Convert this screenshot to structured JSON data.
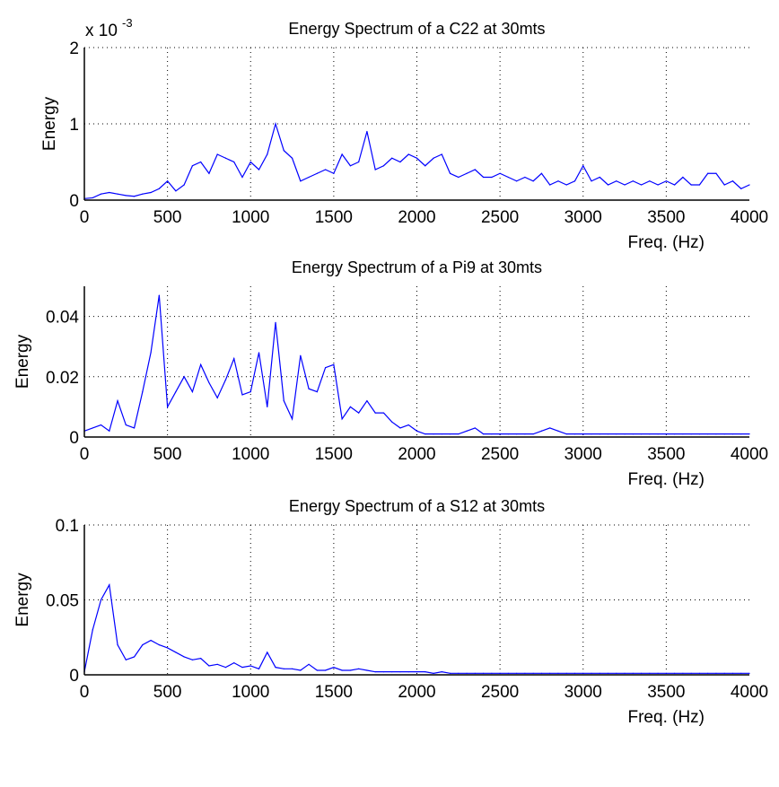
{
  "chart_data": [
    {
      "type": "line",
      "title": "Energy Spectrum of a C22 at 30mts",
      "xlabel": "Freq. (Hz)",
      "ylabel": "Energy",
      "y_exponent_label": "x 10",
      "y_exponent": "-3",
      "xlim": [
        0,
        4000
      ],
      "ylim": [
        0,
        2
      ],
      "xticks": [
        "0",
        "500",
        "1000",
        "1500",
        "2000",
        "2500",
        "3000",
        "3500",
        "4000"
      ],
      "yticks": [
        "0",
        "1",
        "2"
      ],
      "grid": true,
      "color": "#0000ff",
      "x_step": 50,
      "values": [
        0.02,
        0.03,
        0.08,
        0.1,
        0.08,
        0.06,
        0.05,
        0.08,
        0.1,
        0.15,
        0.25,
        0.12,
        0.2,
        0.45,
        0.5,
        0.35,
        0.6,
        0.55,
        0.5,
        0.3,
        0.5,
        0.4,
        0.6,
        1.0,
        0.65,
        0.55,
        0.25,
        0.3,
        0.35,
        0.4,
        0.35,
        0.6,
        0.45,
        0.5,
        0.9,
        0.4,
        0.45,
        0.55,
        0.5,
        0.6,
        0.55,
        0.45,
        0.55,
        0.6,
        0.35,
        0.3,
        0.35,
        0.4,
        0.3,
        0.3,
        0.35,
        0.3,
        0.25,
        0.3,
        0.25,
        0.35,
        0.2,
        0.25,
        0.2,
        0.25,
        0.45,
        0.25,
        0.3,
        0.2,
        0.25,
        0.2,
        0.25,
        0.2,
        0.25,
        0.2,
        0.25,
        0.2,
        0.3,
        0.2,
        0.2,
        0.35,
        0.35,
        0.2,
        0.25,
        0.15,
        0.2
      ]
    },
    {
      "type": "line",
      "title": "Energy Spectrum of a Pi9 at 30mts",
      "xlabel": "Freq. (Hz)",
      "ylabel": "Energy",
      "xlim": [
        0,
        4000
      ],
      "ylim": [
        0,
        0.05
      ],
      "xticks": [
        "0",
        "500",
        "1000",
        "1500",
        "2000",
        "2500",
        "3000",
        "3500",
        "4000"
      ],
      "yticks": [
        "0",
        "0.02",
        "0.04"
      ],
      "grid": true,
      "color": "#0000ff",
      "x_step": 50,
      "values": [
        0.002,
        0.003,
        0.004,
        0.002,
        0.012,
        0.004,
        0.003,
        0.015,
        0.028,
        0.047,
        0.01,
        0.015,
        0.02,
        0.015,
        0.024,
        0.018,
        0.013,
        0.019,
        0.026,
        0.014,
        0.015,
        0.028,
        0.01,
        0.038,
        0.012,
        0.006,
        0.027,
        0.016,
        0.015,
        0.023,
        0.024,
        0.006,
        0.01,
        0.008,
        0.012,
        0.008,
        0.008,
        0.005,
        0.003,
        0.004,
        0.002,
        0.001,
        0.001,
        0.001,
        0.001,
        0.001,
        0.002,
        0.003,
        0.001,
        0.001,
        0.001,
        0.001,
        0.001,
        0.001,
        0.001,
        0.002,
        0.003,
        0.002,
        0.001,
        0.001,
        0.001,
        0.001,
        0.001,
        0.001,
        0.001,
        0.001,
        0.001,
        0.001,
        0.001,
        0.001,
        0.001,
        0.001,
        0.001,
        0.001,
        0.001,
        0.001,
        0.001,
        0.001,
        0.001,
        0.001,
        0.001
      ]
    },
    {
      "type": "line",
      "title": "Energy Spectrum of a S12 at 30mts",
      "xlabel": "Freq. (Hz)",
      "ylabel": "Energy",
      "xlim": [
        0,
        4000
      ],
      "ylim": [
        0,
        0.1
      ],
      "xticks": [
        "0",
        "500",
        "1000",
        "1500",
        "2000",
        "2500",
        "3000",
        "3500",
        "4000"
      ],
      "yticks": [
        "0",
        "0.05",
        "0.1"
      ],
      "grid": true,
      "color": "#0000ff",
      "x_step": 50,
      "values": [
        0.002,
        0.03,
        0.05,
        0.06,
        0.02,
        0.01,
        0.012,
        0.02,
        0.023,
        0.02,
        0.018,
        0.015,
        0.012,
        0.01,
        0.011,
        0.006,
        0.007,
        0.005,
        0.008,
        0.005,
        0.006,
        0.004,
        0.015,
        0.005,
        0.004,
        0.004,
        0.003,
        0.007,
        0.003,
        0.003,
        0.005,
        0.003,
        0.003,
        0.004,
        0.003,
        0.002,
        0.002,
        0.002,
        0.002,
        0.002,
        0.002,
        0.002,
        0.001,
        0.002,
        0.001,
        0.001,
        0.001,
        0.001,
        0.001,
        0.001,
        0.001,
        0.001,
        0.001,
        0.001,
        0.001,
        0.001,
        0.001,
        0.001,
        0.001,
        0.001,
        0.001,
        0.001,
        0.001,
        0.001,
        0.001,
        0.001,
        0.001,
        0.001,
        0.001,
        0.001,
        0.001,
        0.001,
        0.001,
        0.001,
        0.001,
        0.001,
        0.001,
        0.001,
        0.001,
        0.001,
        0.001
      ]
    }
  ]
}
